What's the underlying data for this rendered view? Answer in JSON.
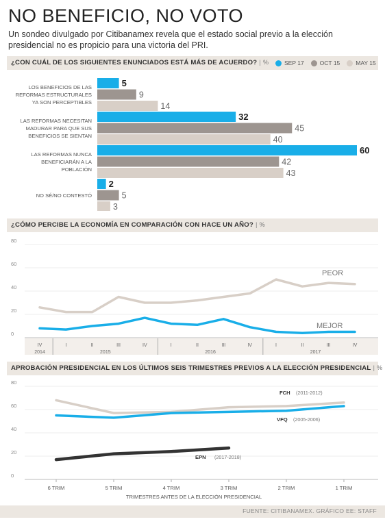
{
  "header": {
    "title": "NO BENEFICIO, NO VOTO",
    "subtitle": "Un sondeo divulgado por Citibanamex revela que el estado social previo a la elección presidencial no es propicio para una victoria del PRI."
  },
  "colors": {
    "blue": "#19aee8",
    "dark_gray": "#9d9590",
    "light_gray": "#d8cfc7",
    "black_line": "#333333",
    "header_bg": "#ece7e1"
  },
  "footer": {
    "source": "FUENTE: CITIBANAMEX. GRÁFICO EE: STAFF"
  },
  "chart_data": [
    {
      "type": "bar",
      "orientation": "horizontal",
      "title": "¿CON CUÁL DE LOS SIGUIENTES ENUNCIADOS ESTÁ MÁS DE ACUERDO?",
      "unit": "%",
      "legend_placement": "top-right",
      "categories": [
        [
          "LOS BENEFICIOS DE LAS",
          "REFORMAS ESTRUCTURALES",
          "YA SON PERCEPTIBLES"
        ],
        [
          "LAS REFORMAS NECESITAN",
          "MADURAR PARA QUE SUS",
          "BENEFICIOS SE SIENTAN"
        ],
        [
          "LAS REFORMAS NUNCA",
          "BENEFICIARÁN A LA",
          "POBLACIÓN"
        ],
        [
          "NO SÉ/NO CONTESTÓ"
        ]
      ],
      "series": [
        {
          "name": "SEP 17",
          "color": "#19aee8",
          "values": [
            5,
            32,
            60,
            2
          ]
        },
        {
          "name": "OCT 15",
          "color": "#9d9590",
          "values": [
            9,
            45,
            42,
            5
          ]
        },
        {
          "name": "MAY 15",
          "color": "#d8cfc7",
          "values": [
            14,
            40,
            43,
            3
          ]
        }
      ],
      "xlim": [
        0,
        60
      ]
    },
    {
      "type": "line",
      "title": "¿CÓMO PERCIBE LA ECONOMÍA EN COMPARACIÓN CON HACE UN AÑO?",
      "unit": "%",
      "ylim": [
        0,
        80
      ],
      "yticks": [
        0,
        20,
        40,
        60,
        80
      ],
      "x_labels": [
        "IV",
        "I",
        "II",
        "III",
        "IV",
        "I",
        "II",
        "III",
        "IV",
        "I",
        "II",
        "III",
        "IV"
      ],
      "year_labels": [
        {
          "label": "2014",
          "at": 0
        },
        {
          "label": "2015",
          "at": 2.5
        },
        {
          "label": "2016",
          "at": 6.5
        },
        {
          "label": "2017",
          "at": 10.5
        }
      ],
      "year_dividers": [
        0.5,
        4.5,
        8.5
      ],
      "grid": true,
      "series": [
        {
          "name": "PEOR",
          "color": "#d8cfc7",
          "values": [
            26,
            22,
            22,
            35,
            30,
            30,
            32,
            35,
            38,
            50,
            44,
            47,
            46
          ]
        },
        {
          "name": "MEJOR",
          "color": "#19aee8",
          "values": [
            8,
            7,
            10,
            12,
            17,
            12,
            11,
            16,
            9,
            5,
            4,
            5,
            5
          ]
        }
      ]
    },
    {
      "type": "line",
      "title": "APROBACIÓN PRESIDENCIAL EN LOS ÚLTIMOS SEIS TRIMESTRES PREVIOS A LA ELECCIÓN PRESIDENCIAL",
      "unit": "%",
      "ylim": [
        0,
        80
      ],
      "yticks": [
        0,
        20,
        40,
        60,
        80
      ],
      "categories": [
        "6 TRIM",
        "5 TRIM",
        "4 TRIM",
        "3 TRIM",
        "2 TRIM",
        "1 TRIM"
      ],
      "xlabel": "TRIMESTRES ANTES DE LA ELECCIÓN PRESIDENCIAL",
      "grid": true,
      "series": [
        {
          "name": "FCH",
          "period": "(2011-2012)",
          "color": "#d8cfc7",
          "values": [
            68,
            57,
            58,
            62,
            63,
            66
          ]
        },
        {
          "name": "VFQ",
          "period": "(2005-2006)",
          "color": "#19aee8",
          "values": [
            55,
            53,
            57,
            58,
            59,
            63
          ]
        },
        {
          "name": "EPN",
          "period": "(2017-2018)",
          "color": "#333333",
          "values": [
            17,
            22,
            24,
            27,
            null,
            null
          ]
        }
      ]
    }
  ]
}
